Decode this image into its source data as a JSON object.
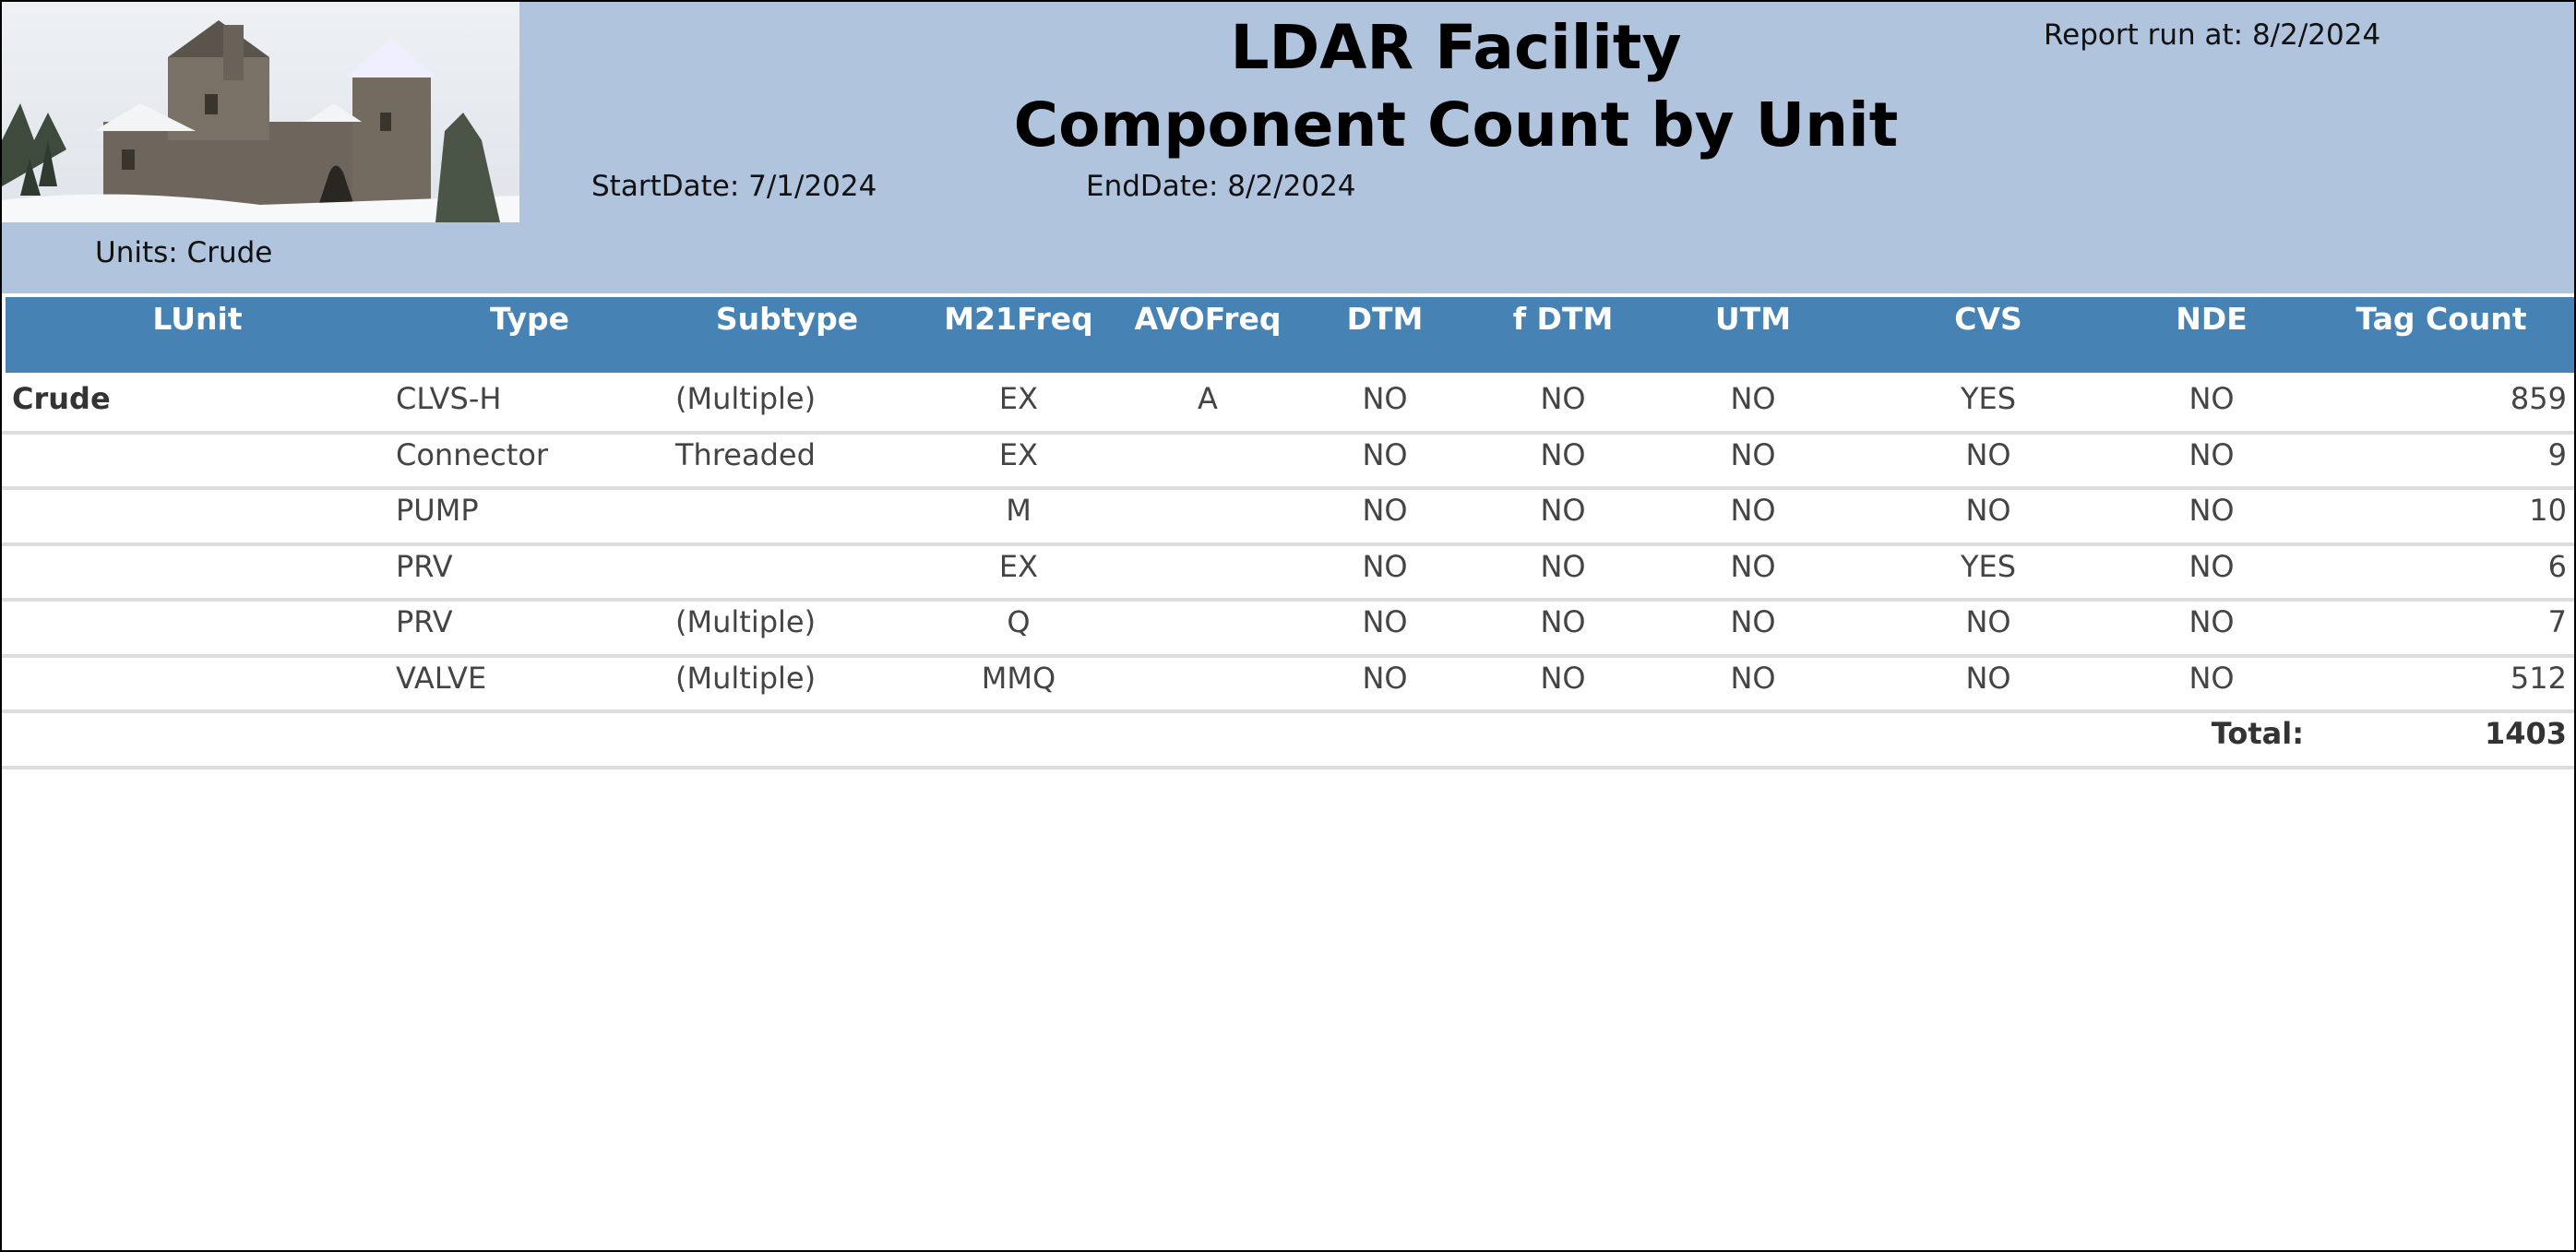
{
  "header": {
    "title": "LDAR Facility",
    "subtitle": "Component Count by Unit",
    "report_run": "Report run at: 8/2/2024",
    "start_date": "StartDate: 7/1/2024",
    "end_date": "EndDate: 8/2/2024",
    "units": "Units: Crude"
  },
  "table": {
    "columns": [
      "LUnit",
      "Type",
      "Subtype",
      "M21Freq",
      "AVOFreq",
      "DTM",
      "f DTM",
      "UTM",
      "CVS",
      "NDE",
      "Tag Count"
    ],
    "rows": [
      [
        "Crude",
        "CLVS-H",
        "(Multiple)",
        "EX",
        "A",
        "NO",
        "NO",
        "NO",
        "YES",
        "NO",
        859
      ],
      [
        null,
        "Connector",
        "Threaded",
        "EX",
        null,
        "NO",
        "NO",
        "NO",
        "NO",
        "NO",
        9
      ],
      [
        null,
        "PUMP",
        null,
        "M",
        null,
        "NO",
        "NO",
        "NO",
        "NO",
        "NO",
        10
      ],
      [
        null,
        "PRV",
        null,
        "EX",
        null,
        "NO",
        "NO",
        "NO",
        "YES",
        "NO",
        6
      ],
      [
        null,
        "PRV",
        "(Multiple)",
        "Q",
        null,
        "NO",
        "NO",
        "NO",
        "NO",
        "NO",
        7
      ],
      [
        null,
        "VALVE",
        "(Multiple)",
        "MMQ",
        null,
        "NO",
        "NO",
        "NO",
        "NO",
        "NO",
        512
      ]
    ],
    "total_label": "Total:",
    "total_value": 1403
  }
}
